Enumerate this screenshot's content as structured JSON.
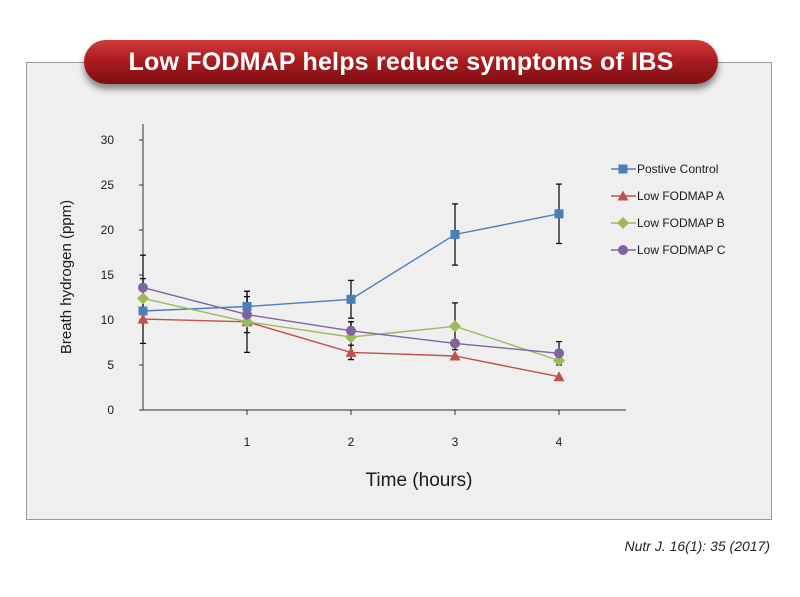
{
  "banner": {
    "title": "Low FODMAP helps reduce symptoms of IBS"
  },
  "citation": "Nutr J. 16(1): 35 (2017)",
  "chart_data": {
    "type": "line",
    "title": "",
    "xlabel": "Time (hours)",
    "ylabel": "Breath hydrogen (ppm)",
    "x": [
      0,
      1,
      2,
      3,
      4
    ],
    "x_tick_labels": [
      "1",
      "2",
      "3",
      "4"
    ],
    "y_ticks": [
      0,
      5,
      10,
      15,
      20,
      25,
      30
    ],
    "xlim": [
      0,
      4.6
    ],
    "ylim": [
      0,
      30
    ],
    "grid": false,
    "legend": "right",
    "series": [
      {
        "name": "Postive Control",
        "color": "#4a7ebb",
        "marker": "square",
        "values": [
          11.0,
          11.5,
          12.3,
          19.5,
          21.8
        ],
        "error": [
          3.6,
          1.7,
          2.1,
          3.4,
          3.3
        ]
      },
      {
        "name": "Low FODMAP A",
        "color": "#c0504d",
        "marker": "triangle",
        "values": [
          10.1,
          9.8,
          6.4,
          6.0,
          3.7
        ],
        "error": [
          0,
          0,
          0.8,
          0,
          0
        ]
      },
      {
        "name": "Low FODMAP B",
        "color": "#9bbb59",
        "marker": "diamond",
        "values": [
          12.4,
          9.8,
          8.1,
          9.3,
          5.5
        ],
        "error": [
          0,
          3.4,
          1.7,
          2.6,
          0
        ]
      },
      {
        "name": "Low FODMAP C",
        "color": "#8064a2",
        "marker": "circle",
        "values": [
          13.6,
          10.6,
          8.8,
          7.4,
          6.3
        ],
        "error": [
          3.6,
          2.0,
          1.0,
          0,
          1.3
        ]
      }
    ]
  }
}
